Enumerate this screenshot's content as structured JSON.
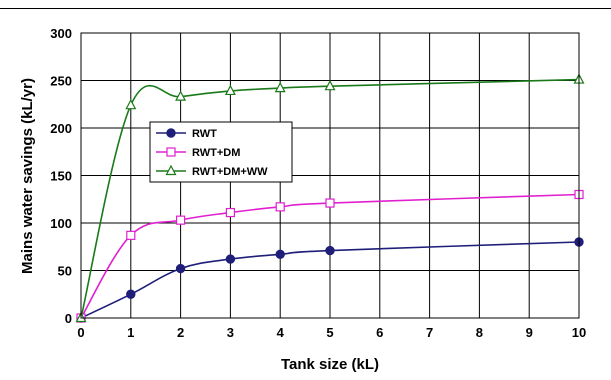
{
  "chart_data": {
    "type": "line",
    "xlabel": "Tank size (kL)",
    "ylabel": "Mains water savings (kL/yr)",
    "xlim": [
      0,
      10
    ],
    "ylim": [
      0,
      300
    ],
    "xticks": [
      0,
      1,
      2,
      3,
      4,
      5,
      6,
      7,
      8,
      9,
      10
    ],
    "yticks": [
      0,
      50,
      100,
      150,
      200,
      250,
      300
    ],
    "grid": true,
    "legend_position": "upper-left-inside",
    "series": [
      {
        "name": "RWT",
        "color": "#1f1f7a",
        "marker": "filled-circle",
        "x": [
          0,
          1,
          2,
          3,
          4,
          5,
          10
        ],
        "y": [
          0,
          25,
          52,
          62,
          67,
          71,
          80
        ]
      },
      {
        "name": "RWT+DM",
        "color": "#e020d0",
        "marker": "open-square",
        "x": [
          0,
          1,
          2,
          3,
          4,
          5,
          10
        ],
        "y": [
          0,
          87,
          103,
          111,
          117,
          121,
          130
        ]
      },
      {
        "name": "RWT+DM+WW",
        "color": "#1a7a1a",
        "marker": "open-triangle",
        "x": [
          0,
          1,
          2,
          3,
          4,
          5,
          10
        ],
        "y": [
          0,
          224,
          233,
          239,
          242,
          244,
          251
        ]
      }
    ]
  }
}
